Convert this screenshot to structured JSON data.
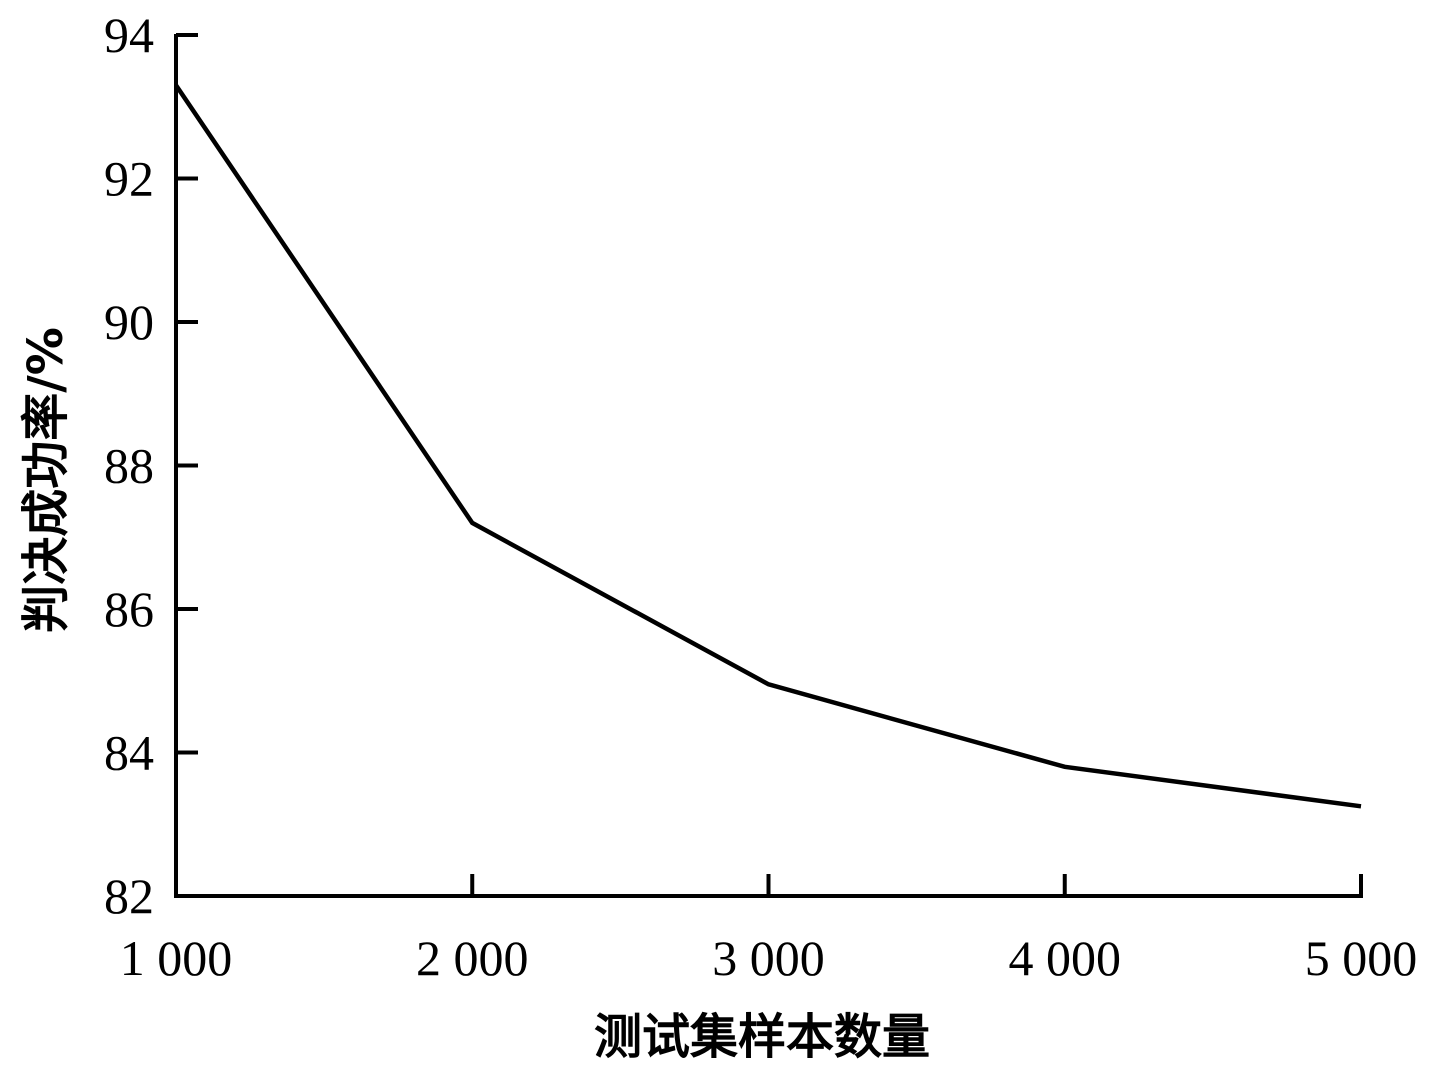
{
  "chart_data": {
    "type": "line",
    "xlabel": "测试集样本数量",
    "ylabel": "判决成功率/%",
    "x": [
      1000,
      2000,
      3000,
      4000,
      5000
    ],
    "x_tick_labels": [
      "1 000",
      "2 000",
      "3 000",
      "4 000",
      "5 000"
    ],
    "y_ticks": [
      82,
      84,
      86,
      88,
      90,
      92,
      94
    ],
    "y_tick_labels": [
      "82",
      "84",
      "86",
      "88",
      "90",
      "92",
      "94"
    ],
    "xlim": [
      1000,
      5000
    ],
    "ylim": [
      82,
      94
    ],
    "series": [
      {
        "values": [
          93.3,
          87.2,
          84.95,
          83.8,
          83.25
        ]
      }
    ],
    "grid": false,
    "colors": {
      "line": "#000000",
      "axis": "#000000"
    }
  }
}
